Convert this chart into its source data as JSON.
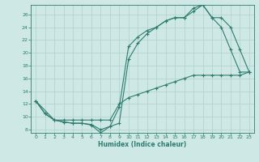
{
  "xlabel": "Humidex (Indice chaleur)",
  "bg_color": "#cde8e5",
  "line_color": "#2e7d6e",
  "grid_color": "#afd0cc",
  "x_ticks": [
    0,
    1,
    2,
    3,
    4,
    5,
    6,
    7,
    8,
    9,
    10,
    11,
    12,
    13,
    14,
    15,
    16,
    17,
    18,
    19,
    20,
    21,
    22,
    23
  ],
  "y_ticks": [
    8,
    10,
    12,
    14,
    16,
    18,
    20,
    22,
    24,
    26
  ],
  "xlim": [
    -0.5,
    23.5
  ],
  "ylim": [
    7.5,
    27.5
  ],
  "line1_x": [
    0,
    1,
    2,
    3,
    4,
    5,
    6,
    7,
    8,
    9,
    10,
    11,
    12,
    13,
    14,
    15,
    16,
    17,
    18,
    19,
    20,
    21,
    22,
    23
  ],
  "line1_y": [
    12.5,
    10.5,
    9.5,
    9.2,
    9.0,
    9.0,
    8.8,
    8.0,
    8.5,
    11.5,
    21.0,
    22.5,
    23.5,
    24.0,
    25.0,
    25.5,
    25.5,
    27.0,
    27.5,
    25.5,
    24.0,
    20.5,
    17.0,
    17.0
  ],
  "line2_x": [
    0,
    2,
    3,
    4,
    5,
    6,
    7,
    8,
    9,
    10,
    11,
    12,
    13,
    14,
    15,
    16,
    17,
    18,
    19,
    20,
    21,
    22,
    23
  ],
  "line2_y": [
    12.5,
    9.5,
    9.2,
    9.0,
    9.0,
    8.7,
    7.5,
    8.5,
    9.0,
    19.0,
    21.5,
    23.0,
    24.0,
    25.0,
    25.5,
    25.5,
    26.5,
    27.5,
    25.5,
    25.5,
    24.0,
    20.5,
    17.0
  ],
  "line3_x": [
    0,
    1,
    2,
    3,
    4,
    5,
    6,
    7,
    8,
    9,
    10,
    11,
    12,
    13,
    14,
    15,
    16,
    17,
    18,
    19,
    20,
    21,
    22,
    23
  ],
  "line3_y": [
    12.5,
    10.5,
    9.5,
    9.5,
    9.5,
    9.5,
    9.5,
    9.5,
    9.5,
    12.0,
    13.0,
    13.5,
    14.0,
    14.5,
    15.0,
    15.5,
    16.0,
    16.5,
    16.5,
    16.5,
    16.5,
    16.5,
    16.5,
    17.0
  ]
}
